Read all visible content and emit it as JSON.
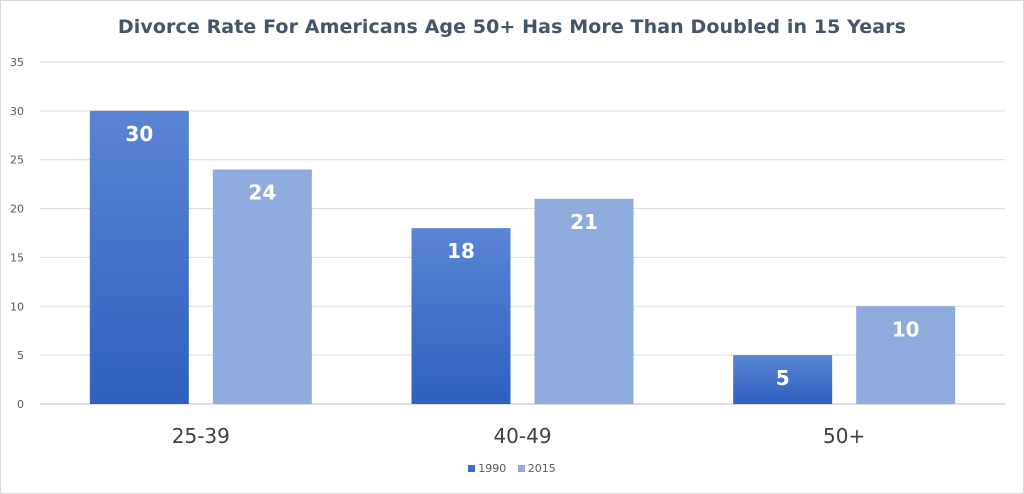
{
  "chart_data": {
    "type": "bar",
    "title": "Divorce Rate For Americans Age 50+ Has More Than Doubled in 15 Years",
    "xlabel": "",
    "ylabel": "",
    "categories": [
      "25-39",
      "40-49",
      "50+"
    ],
    "series": [
      {
        "name": "1990",
        "values": [
          30,
          18,
          5
        ],
        "color": "#3a6ccc"
      },
      {
        "name": "2015",
        "values": [
          24,
          21,
          10
        ],
        "color": "#8faadc"
      }
    ],
    "ylim": [
      0,
      35
    ],
    "yticks": [
      0,
      5,
      10,
      15,
      20,
      25,
      30,
      35
    ],
    "grid": true,
    "legend": "bottom-center",
    "data_labels": true
  }
}
